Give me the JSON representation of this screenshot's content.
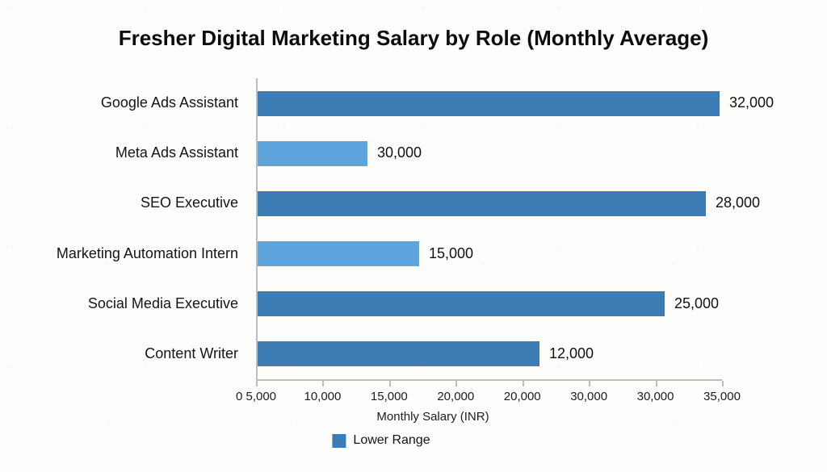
{
  "chart_data": {
    "type": "bar",
    "orientation": "horizontal",
    "title": "Fresher Digital Marketing Salary by Role (Monthly Average)",
    "xlabel": "Monthly Salary (INR)",
    "x_axis_range": [
      0,
      35000
    ],
    "x_tick_labels": [
      "0 5,000",
      "10,000",
      "15,000",
      "20,000",
      "20,000",
      "30,000",
      "30,000",
      "35,000"
    ],
    "grid": "off",
    "legend": {
      "position": "bottom-center",
      "items": [
        {
          "label": "Lower Range",
          "color": "#3d7cb4"
        }
      ]
    },
    "colors": {
      "dark_bar": "#3d7cb4",
      "light_bar": "#5ea4dd",
      "axis_line": "#bdbdbd",
      "text": "#141414"
    },
    "categories": [
      "Google Ads Assistant",
      "Meta Ads Assistant",
      "SEO Executive",
      "Marketing Automation Intern",
      "Social Media Executive",
      "Content Writer"
    ],
    "values": [
      32000,
      30000,
      28000,
      15000,
      25000,
      12000
    ],
    "bars": [
      {
        "category": "Google Ads Assistant",
        "value": 32000,
        "value_label": "32,000",
        "bar_visual_extent": 34700,
        "color": "#3d7cb4"
      },
      {
        "category": "Meta Ads Assistant",
        "value": 30000,
        "value_label": "30,000",
        "bar_visual_extent": 8250,
        "color": "#5ea4dd"
      },
      {
        "category": "SEO Executive",
        "value": 28000,
        "value_label": "28,000",
        "bar_visual_extent": 33650,
        "color": "#3d7cb4"
      },
      {
        "category": "Marketing Automation Intern",
        "value": 15000,
        "value_label": "15,000",
        "bar_visual_extent": 12150,
        "color": "#5ea4dd"
      },
      {
        "category": "Social Media Executive",
        "value": 25000,
        "value_label": "25,000",
        "bar_visual_extent": 30600,
        "color": "#3d7cb4"
      },
      {
        "category": "Content Writer",
        "value": 12000,
        "value_label": "12,000",
        "bar_visual_extent": 21150,
        "color": "#3d7cb4"
      }
    ]
  }
}
